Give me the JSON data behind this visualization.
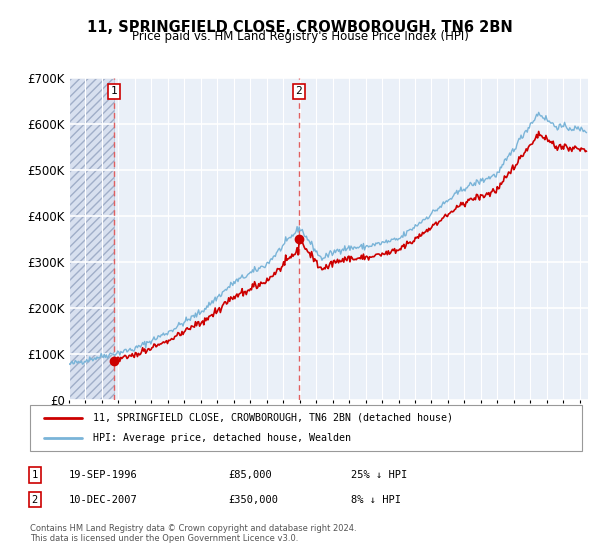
{
  "title": "11, SPRINGFIELD CLOSE, CROWBOROUGH, TN6 2BN",
  "subtitle": "Price paid vs. HM Land Registry's House Price Index (HPI)",
  "ylim": [
    0,
    700000
  ],
  "yticks": [
    0,
    100000,
    200000,
    300000,
    400000,
    500000,
    600000,
    700000
  ],
  "ytick_labels": [
    "£0",
    "£100K",
    "£200K",
    "£300K",
    "£400K",
    "£500K",
    "£600K",
    "£700K"
  ],
  "xlim_start": 1994.0,
  "xlim_end": 2025.5,
  "xticks": [
    1994,
    1995,
    1996,
    1997,
    1998,
    1999,
    2000,
    2001,
    2002,
    2003,
    2004,
    2005,
    2006,
    2007,
    2008,
    2009,
    2010,
    2011,
    2012,
    2013,
    2014,
    2015,
    2016,
    2017,
    2018,
    2019,
    2020,
    2021,
    2022,
    2023,
    2024,
    2025
  ],
  "hpi_color": "#7ab4d8",
  "price_color": "#cc0000",
  "vline_color": "#e06060",
  "purchase1_date": 1996.72,
  "purchase1_price": 85000,
  "purchase1_label": "1",
  "purchase2_date": 2007.94,
  "purchase2_price": 350000,
  "purchase2_label": "2",
  "legend_line1": "11, SPRINGFIELD CLOSE, CROWBOROUGH, TN6 2BN (detached house)",
  "legend_line2": "HPI: Average price, detached house, Wealden",
  "table_row1": [
    "1",
    "19-SEP-1996",
    "£85,000",
    "25% ↓ HPI"
  ],
  "table_row2": [
    "2",
    "10-DEC-2007",
    "£350,000",
    "8% ↓ HPI"
  ],
  "footnote1": "Contains HM Land Registry data © Crown copyright and database right 2024.",
  "footnote2": "This data is licensed under the Open Government Licence v3.0.",
  "bg_color": "#ffffff",
  "plot_bg_color": "#eaf0f8",
  "hatch_bg_color": "#d8e0ef",
  "grid_color": "#ffffff",
  "noise_seed": 42,
  "hpi_noise_scale": 3500,
  "red_noise_scale": 2500
}
